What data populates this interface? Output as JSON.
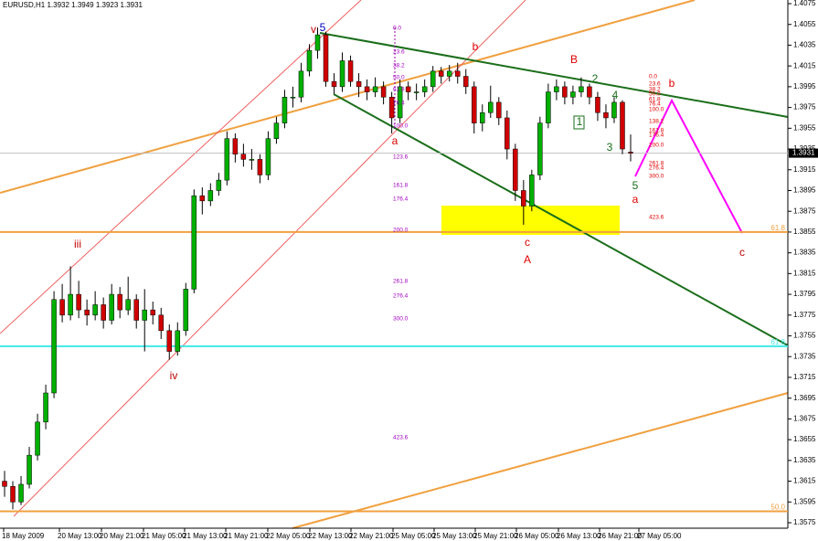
{
  "chart_data": {
    "type": "candlestick",
    "title": "EURUSD,H1  1.3932 1.3949 1.3923 1.3931",
    "ylim": [
      1.3575,
      1.4075
    ],
    "yticks": [
      1.4075,
      1.4055,
      1.4035,
      1.4015,
      1.3995,
      1.3975,
      1.3955,
      1.3935,
      1.3915,
      1.3895,
      1.3875,
      1.3855,
      1.3835,
      1.3815,
      1.3795,
      1.3775,
      1.3755,
      1.3735,
      1.3715,
      1.3695,
      1.3675,
      1.3655,
      1.3635,
      1.3615,
      1.3595,
      1.3575
    ],
    "x_tick_labels": [
      "18 May 2009",
      "20 May 13:00",
      "20 May 21:00",
      "21 May 05:00",
      "21 May 13:00",
      "21 May 21:00",
      "22 May 05:00",
      "22 May 13:00",
      "22 May 21:00",
      "25 May 05:00",
      "25 May 13:00",
      "25 May 21:00",
      "26 May 05:00",
      "26 May 13:00",
      "26 May 21:00",
      "27 May 05:00"
    ],
    "up_color": "#00b000",
    "down_color": "#d00000",
    "current_price": 1.3931,
    "levels": [
      {
        "price": 1.3745,
        "color": "#40e8e8",
        "label": "61.8"
      },
      {
        "price": 1.3855,
        "color": "#f0a040",
        "label": "61.8"
      },
      {
        "price": 1.3586,
        "color": "#f0a040",
        "label": "50.0"
      }
    ],
    "wave_labels": [
      "v",
      "5",
      "iii",
      "iv",
      "a",
      "b",
      "c",
      "A",
      "B",
      "2",
      "4",
      "1",
      "3",
      "5",
      "a",
      "b",
      "c"
    ],
    "fib_left": [
      "0.0",
      "23.6",
      "38.2",
      "50.0",
      "61.8",
      "76.4",
      "100.0",
      "123.6",
      "161.8",
      "176.4",
      "200.0",
      "261.8",
      "276.4",
      "300.0",
      "423.6"
    ],
    "fib_right": [
      "0.0",
      "23.6",
      "38.2",
      "50.0",
      "61.8",
      "76.4",
      "100.0",
      "138.2",
      "161.8",
      "176.4",
      "200.0",
      "261.8",
      "276.4",
      "300.0",
      "423.6"
    ],
    "ohlc": [
      [
        1.3615,
        1.3625,
        1.36,
        1.361
      ],
      [
        1.361,
        1.3615,
        1.3588,
        1.3595
      ],
      [
        1.3595,
        1.362,
        1.3592,
        1.3612
      ],
      [
        1.3612,
        1.3648,
        1.3608,
        1.364
      ],
      [
        1.364,
        1.368,
        1.3635,
        1.3672
      ],
      [
        1.3672,
        1.3708,
        1.3665,
        1.37
      ],
      [
        1.37,
        1.3798,
        1.3695,
        1.379
      ],
      [
        1.379,
        1.3805,
        1.3768,
        1.3775
      ],
      [
        1.3775,
        1.3822,
        1.377,
        1.3795
      ],
      [
        1.3795,
        1.3808,
        1.3772,
        1.378
      ],
      [
        1.378,
        1.379,
        1.3765,
        1.3775
      ],
      [
        1.3775,
        1.3798,
        1.377,
        1.3785
      ],
      [
        1.3785,
        1.3792,
        1.3762,
        1.377
      ],
      [
        1.377,
        1.3805,
        1.3766,
        1.3795
      ],
      [
        1.3795,
        1.3802,
        1.3772,
        1.378
      ],
      [
        1.378,
        1.3812,
        1.3775,
        1.379
      ],
      [
        1.379,
        1.3795,
        1.3762,
        1.377
      ],
      [
        1.377,
        1.38,
        1.374,
        1.378
      ],
      [
        1.378,
        1.3788,
        1.3766,
        1.3775
      ],
      [
        1.3775,
        1.3782,
        1.3752,
        1.376
      ],
      [
        1.376,
        1.3766,
        1.3732,
        1.374
      ],
      [
        1.374,
        1.3768,
        1.3736,
        1.376
      ],
      [
        1.376,
        1.3806,
        1.3755,
        1.38
      ],
      [
        1.38,
        1.3896,
        1.3796,
        1.389
      ],
      [
        1.389,
        1.3898,
        1.3872,
        1.3885
      ],
      [
        1.3885,
        1.3902,
        1.388,
        1.3895
      ],
      [
        1.3895,
        1.3912,
        1.389,
        1.3905
      ],
      [
        1.3905,
        1.3952,
        1.39,
        1.3945
      ],
      [
        1.3945,
        1.395,
        1.3922,
        1.393
      ],
      [
        1.393,
        1.394,
        1.3918,
        1.3925
      ],
      [
        1.3925,
        1.3935,
        1.3915,
        1.3925
      ],
      [
        1.3925,
        1.393,
        1.3902,
        1.391
      ],
      [
        1.391,
        1.3952,
        1.3905,
        1.3945
      ],
      [
        1.3945,
        1.3966,
        1.394,
        1.396
      ],
      [
        1.396,
        1.3992,
        1.3955,
        1.3985
      ],
      [
        1.3985,
        1.3995,
        1.3975,
        1.3985
      ],
      [
        1.3985,
        1.4018,
        1.398,
        1.401
      ],
      [
        1.401,
        1.4036,
        1.4005,
        1.403
      ],
      [
        1.403,
        1.4052,
        1.4022,
        1.4045
      ],
      [
        1.4045,
        1.4048,
        1.3995,
        1.4
      ],
      [
        1.4,
        1.4008,
        1.3988,
        1.3995
      ],
      [
        1.3995,
        1.4028,
        1.399,
        1.402
      ],
      [
        1.402,
        1.4025,
        1.3995,
        1.4
      ],
      [
        1.4,
        1.4008,
        1.3985,
        1.3995
      ],
      [
        1.3995,
        1.4002,
        1.3982,
        1.399
      ],
      [
        1.399,
        1.4004,
        1.3985,
        1.3995
      ],
      [
        1.3995,
        1.4,
        1.3978,
        1.3985
      ],
      [
        1.3985,
        1.399,
        1.395,
        1.3965
      ],
      [
        1.3965,
        1.4002,
        1.396,
        1.3995
      ],
      [
        1.3995,
        1.4,
        1.3982,
        1.399
      ],
      [
        1.399,
        1.3998,
        1.3982,
        1.399
      ],
      [
        1.399,
        1.4002,
        1.3985,
        1.3995
      ],
      [
        1.3995,
        1.4015,
        1.399,
        1.401
      ],
      [
        1.401,
        1.4014,
        1.3998,
        1.4005
      ],
      [
        1.4005,
        1.4016,
        1.4,
        1.401
      ],
      [
        1.401,
        1.4018,
        1.3998,
        1.4005
      ],
      [
        1.4005,
        1.4012,
        1.3988,
        1.3995
      ],
      [
        1.3995,
        1.4,
        1.395,
        1.396
      ],
      [
        1.396,
        1.3978,
        1.3952,
        1.397
      ],
      [
        1.397,
        1.3996,
        1.3965,
        1.398
      ],
      [
        1.398,
        1.3985,
        1.3958,
        1.3965
      ],
      [
        1.3965,
        1.3972,
        1.3925,
        1.3935
      ],
      [
        1.3935,
        1.394,
        1.3885,
        1.3895
      ],
      [
        1.3895,
        1.3905,
        1.3862,
        1.388
      ],
      [
        1.388,
        1.3915,
        1.3875,
        1.391
      ],
      [
        1.391,
        1.3966,
        1.3905,
        1.396
      ],
      [
        1.396,
        1.3998,
        1.3955,
        1.399
      ],
      [
        1.399,
        1.4002,
        1.3982,
        1.3995
      ],
      [
        1.3995,
        1.4,
        1.3978,
        1.3985
      ],
      [
        1.3985,
        1.3996,
        1.3978,
        1.399
      ],
      [
        1.399,
        1.4004,
        1.3985,
        1.3995
      ],
      [
        1.3995,
        1.3998,
        1.3978,
        1.3985
      ],
      [
        1.3985,
        1.399,
        1.3962,
        1.397
      ],
      [
        1.397,
        1.3978,
        1.3955,
        1.3965
      ],
      [
        1.3965,
        1.3985,
        1.396,
        1.398
      ],
      [
        1.398,
        1.3982,
        1.393,
        1.3935
      ],
      [
        1.3932,
        1.3949,
        1.3923,
        1.3931
      ]
    ]
  }
}
